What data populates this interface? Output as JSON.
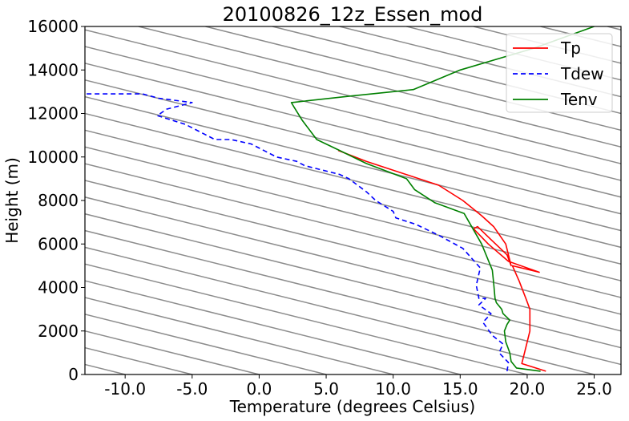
{
  "chart_data": {
    "type": "line",
    "title": "20100826_12z_Essen_mod",
    "xlabel": "Temperature (degrees Celsius)",
    "ylabel": "Height (m)",
    "xlim": [
      -13,
      27
    ],
    "ylim": [
      0,
      16000
    ],
    "xticks": [
      -10,
      -5,
      0,
      5,
      10,
      15,
      20,
      25
    ],
    "xtick_labels": [
      "-10.0",
      "-5.0",
      "0.0",
      "5.0",
      "10.0",
      "15.0",
      "20.0",
      "25.0"
    ],
    "yticks": [
      0,
      2000,
      4000,
      6000,
      8000,
      10000,
      12000,
      14000,
      16000
    ],
    "ytick_labels": [
      "0",
      "2000",
      "4000",
      "6000",
      "8000",
      "10000",
      "12000",
      "14000",
      "16000"
    ],
    "legend_position": "top-right",
    "grid": false,
    "dry_adiabat_slope_C_per_km": 6.5,
    "dry_adiabat_color": "#8c8c8c",
    "series": [
      {
        "name": "Tp",
        "color": "#ff0000",
        "style": "solid",
        "points": [
          [
            21.4,
            150
          ],
          [
            19.6,
            500
          ],
          [
            19.8,
            1000
          ],
          [
            20.2,
            2000
          ],
          [
            20.2,
            3000
          ],
          [
            19.9,
            3500
          ],
          [
            19.4,
            4300
          ],
          [
            18.9,
            5000
          ],
          [
            20.9,
            4700
          ],
          [
            18.6,
            5200
          ],
          [
            17.1,
            6000
          ],
          [
            16.0,
            6700
          ],
          [
            16.3,
            6800
          ],
          [
            17.3,
            6200
          ],
          [
            18.5,
            5500
          ],
          [
            18.8,
            5000
          ],
          [
            18.4,
            6000
          ],
          [
            17.5,
            6800
          ],
          [
            16.6,
            7300
          ],
          [
            15.2,
            8000
          ],
          [
            13.4,
            8700
          ],
          [
            8.0,
            9800
          ],
          [
            5.9,
            10300
          ]
        ]
      },
      {
        "name": "Tdew",
        "color": "#0000ff",
        "style": "dashed",
        "points": [
          [
            18.5,
            150
          ],
          [
            18.6,
            550
          ],
          [
            17.9,
            1000
          ],
          [
            18.2,
            1400
          ],
          [
            17.4,
            1800
          ],
          [
            16.7,
            2400
          ],
          [
            17.3,
            2800
          ],
          [
            16.4,
            3200
          ],
          [
            16.9,
            3500
          ],
          [
            16.4,
            3500
          ],
          [
            16.2,
            4100
          ],
          [
            16.5,
            4900
          ],
          [
            15.2,
            5800
          ],
          [
            13.4,
            6400
          ],
          [
            11.7,
            6900
          ],
          [
            10.2,
            7200
          ],
          [
            10.0,
            7500
          ],
          [
            8.7,
            8000
          ],
          [
            8.0,
            8400
          ],
          [
            6.7,
            9000
          ],
          [
            6.0,
            9200
          ],
          [
            3.4,
            9600
          ],
          [
            2.8,
            9800
          ],
          [
            1.3,
            10000
          ],
          [
            -0.6,
            10600
          ],
          [
            -2.1,
            10800
          ],
          [
            -3.3,
            10800
          ],
          [
            -5.5,
            11500
          ],
          [
            -7.6,
            11900
          ],
          [
            -6.9,
            12200
          ],
          [
            -5.0,
            12500
          ],
          [
            -7.5,
            12700
          ],
          [
            -8.7,
            12900
          ],
          [
            -13,
            12900
          ]
        ]
      },
      {
        "name": "Tenv",
        "color": "#008000",
        "style": "solid",
        "points": [
          [
            21.0,
            150
          ],
          [
            19.2,
            300
          ],
          [
            18.8,
            600
          ],
          [
            18.7,
            1000
          ],
          [
            18.4,
            1500
          ],
          [
            18.3,
            2000
          ],
          [
            18.5,
            2300
          ],
          [
            18.7,
            2500
          ],
          [
            18.2,
            2800
          ],
          [
            18.1,
            3000
          ],
          [
            17.7,
            3300
          ],
          [
            17.6,
            3500
          ],
          [
            17.5,
            4200
          ],
          [
            17.4,
            4800
          ],
          [
            16.6,
            6000
          ],
          [
            15.3,
            7400
          ],
          [
            13.1,
            7900
          ],
          [
            11.6,
            8500
          ],
          [
            11.0,
            9000
          ],
          [
            8.0,
            9700
          ],
          [
            6.0,
            10300
          ],
          [
            4.3,
            10800
          ],
          [
            3.2,
            11700
          ],
          [
            2.6,
            12300
          ],
          [
            2.4,
            12500
          ],
          [
            6.8,
            12800
          ],
          [
            11.5,
            13100
          ],
          [
            15.0,
            14000
          ],
          [
            20.5,
            15000
          ],
          [
            25.0,
            16000
          ]
        ]
      }
    ]
  }
}
